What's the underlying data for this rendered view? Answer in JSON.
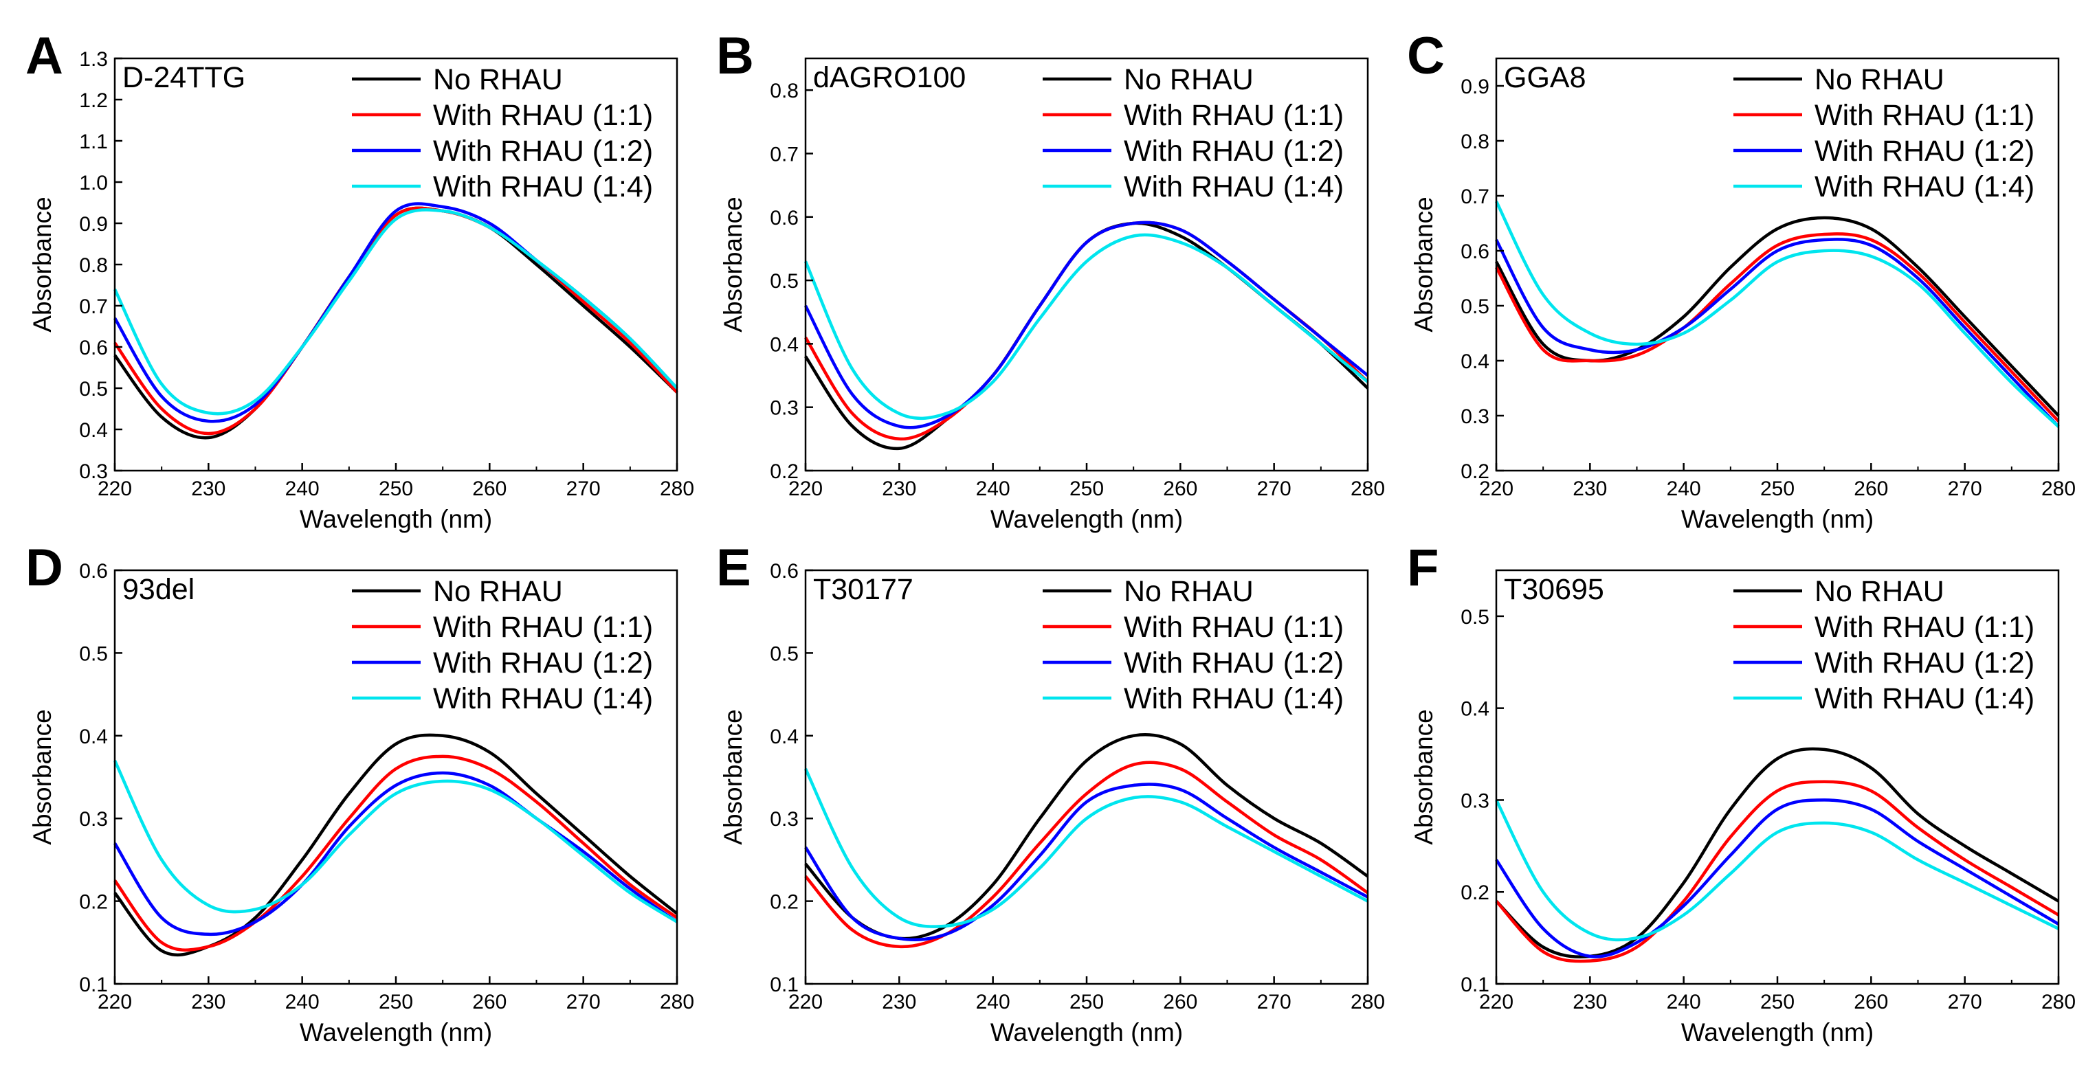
{
  "figure": {
    "description_free": true
  },
  "chart_data": [
    {
      "type": "line",
      "panel": "A",
      "sample": "D-24TTG",
      "xlabel": "Wavelength (nm)",
      "ylabel": "Absorbance",
      "xlim": [
        220,
        280
      ],
      "ylim": [
        0.3,
        1.3
      ],
      "xticks": [
        220,
        230,
        240,
        250,
        260,
        270,
        280
      ],
      "yticks": [
        0.3,
        0.4,
        0.5,
        0.6,
        0.7,
        0.8,
        0.9,
        1.0,
        1.1,
        1.2,
        1.3
      ],
      "x": [
        220,
        225,
        230,
        235,
        240,
        245,
        250,
        255,
        260,
        265,
        270,
        275,
        280
      ],
      "legend": [
        "No RHAU",
        "With RHAU (1:1)",
        "With RHAU (1:2)",
        "With RHAU (1:4)"
      ],
      "series": [
        {
          "name": "No RHAU",
          "color": "#000000",
          "values": [
            0.58,
            0.43,
            0.38,
            0.45,
            0.6,
            0.77,
            0.92,
            0.93,
            0.89,
            0.8,
            0.7,
            0.6,
            0.49
          ]
        },
        {
          "name": "With RHAU (1:1)",
          "color": "#ff0000",
          "values": [
            0.61,
            0.45,
            0.39,
            0.45,
            0.6,
            0.77,
            0.92,
            0.93,
            0.89,
            0.81,
            0.71,
            0.61,
            0.49
          ]
        },
        {
          "name": "With RHAU (1:2)",
          "color": "#0000ff",
          "values": [
            0.67,
            0.48,
            0.42,
            0.46,
            0.6,
            0.77,
            0.93,
            0.94,
            0.9,
            0.81,
            0.72,
            0.62,
            0.5
          ]
        },
        {
          "name": "With RHAU (1:4)",
          "color": "#00e5ee",
          "values": [
            0.74,
            0.51,
            0.44,
            0.47,
            0.6,
            0.76,
            0.91,
            0.93,
            0.89,
            0.81,
            0.72,
            0.62,
            0.5
          ]
        }
      ]
    },
    {
      "type": "line",
      "panel": "B",
      "sample": "dAGRO100",
      "xlabel": "Wavelength (nm)",
      "ylabel": "Absorbance",
      "xlim": [
        220,
        280
      ],
      "ylim": [
        0.2,
        0.85
      ],
      "xticks": [
        220,
        230,
        240,
        250,
        260,
        270,
        280
      ],
      "yticks": [
        0.2,
        0.3,
        0.4,
        0.5,
        0.6,
        0.7,
        0.8
      ],
      "x": [
        220,
        225,
        230,
        235,
        240,
        245,
        250,
        255,
        260,
        265,
        270,
        275,
        280
      ],
      "legend": [
        "No RHAU",
        "With RHAU (1:1)",
        "With RHAU (1:2)",
        "With RHAU (1:4)"
      ],
      "series": [
        {
          "name": "No RHAU",
          "color": "#000000",
          "values": [
            0.38,
            0.27,
            0.235,
            0.28,
            0.35,
            0.46,
            0.56,
            0.59,
            0.57,
            0.52,
            0.46,
            0.4,
            0.33
          ]
        },
        {
          "name": "With RHAU (1:1)",
          "color": "#ff0000",
          "values": [
            0.41,
            0.29,
            0.25,
            0.28,
            0.35,
            0.46,
            0.56,
            0.59,
            0.58,
            0.53,
            0.47,
            0.41,
            0.34
          ]
        },
        {
          "name": "With RHAU (1:2)",
          "color": "#0000ff",
          "values": [
            0.46,
            0.32,
            0.27,
            0.285,
            0.35,
            0.46,
            0.56,
            0.59,
            0.58,
            0.53,
            0.47,
            0.41,
            0.35
          ]
        },
        {
          "name": "With RHAU (1:4)",
          "color": "#00e5ee",
          "values": [
            0.53,
            0.36,
            0.29,
            0.29,
            0.34,
            0.44,
            0.53,
            0.57,
            0.56,
            0.52,
            0.46,
            0.4,
            0.34
          ]
        }
      ]
    },
    {
      "type": "line",
      "panel": "C",
      "sample": "GGA8",
      "xlabel": "Wavelength (nm)",
      "ylabel": "Absorbance",
      "xlim": [
        220,
        280
      ],
      "ylim": [
        0.2,
        0.95
      ],
      "xticks": [
        220,
        230,
        240,
        250,
        260,
        270,
        280
      ],
      "yticks": [
        0.2,
        0.3,
        0.4,
        0.5,
        0.6,
        0.7,
        0.8,
        0.9
      ],
      "x": [
        220,
        225,
        230,
        235,
        240,
        245,
        250,
        255,
        260,
        265,
        270,
        275,
        280
      ],
      "legend": [
        "No RHAU",
        "With RHAU (1:1)",
        "With RHAU (1:2)",
        "With RHAU (1:4)"
      ],
      "series": [
        {
          "name": "No RHAU",
          "color": "#000000",
          "values": [
            0.58,
            0.43,
            0.4,
            0.42,
            0.48,
            0.57,
            0.64,
            0.66,
            0.64,
            0.57,
            0.48,
            0.39,
            0.3
          ]
        },
        {
          "name": "With RHAU (1:1)",
          "color": "#ff0000",
          "values": [
            0.57,
            0.42,
            0.4,
            0.41,
            0.46,
            0.54,
            0.61,
            0.63,
            0.62,
            0.56,
            0.47,
            0.38,
            0.29
          ]
        },
        {
          "name": "With RHAU (1:2)",
          "color": "#0000ff",
          "values": [
            0.62,
            0.46,
            0.42,
            0.42,
            0.46,
            0.53,
            0.6,
            0.62,
            0.61,
            0.55,
            0.46,
            0.37,
            0.28
          ]
        },
        {
          "name": "With RHAU (1:4)",
          "color": "#00e5ee",
          "values": [
            0.69,
            0.52,
            0.45,
            0.43,
            0.45,
            0.51,
            0.58,
            0.6,
            0.59,
            0.54,
            0.45,
            0.36,
            0.28
          ]
        }
      ]
    },
    {
      "type": "line",
      "panel": "D",
      "sample": "93del",
      "xlabel": "Wavelength (nm)",
      "ylabel": "Absorbance",
      "xlim": [
        220,
        280
      ],
      "ylim": [
        0.1,
        0.6
      ],
      "xticks": [
        220,
        230,
        240,
        250,
        260,
        270,
        280
      ],
      "yticks": [
        0.1,
        0.2,
        0.3,
        0.4,
        0.5,
        0.6
      ],
      "x": [
        220,
        225,
        230,
        235,
        240,
        245,
        250,
        255,
        260,
        265,
        270,
        275,
        280
      ],
      "legend": [
        "No RHAU",
        "With RHAU (1:1)",
        "With RHAU (1:2)",
        "With RHAU (1:4)"
      ],
      "series": [
        {
          "name": "No RHAU",
          "color": "#000000",
          "values": [
            0.21,
            0.14,
            0.145,
            0.18,
            0.25,
            0.33,
            0.39,
            0.4,
            0.38,
            0.33,
            0.28,
            0.23,
            0.185
          ]
        },
        {
          "name": "With RHAU (1:1)",
          "color": "#ff0000",
          "values": [
            0.225,
            0.15,
            0.145,
            0.175,
            0.23,
            0.3,
            0.36,
            0.375,
            0.36,
            0.32,
            0.27,
            0.22,
            0.18
          ]
        },
        {
          "name": "With RHAU (1:2)",
          "color": "#0000ff",
          "values": [
            0.27,
            0.18,
            0.16,
            0.175,
            0.22,
            0.29,
            0.34,
            0.355,
            0.34,
            0.3,
            0.26,
            0.215,
            0.175
          ]
        },
        {
          "name": "With RHAU (1:4)",
          "color": "#00e5ee",
          "values": [
            0.37,
            0.25,
            0.195,
            0.19,
            0.22,
            0.28,
            0.33,
            0.345,
            0.335,
            0.3,
            0.255,
            0.21,
            0.175
          ]
        }
      ]
    },
    {
      "type": "line",
      "panel": "E",
      "sample": "T30177",
      "xlabel": "Wavelength (nm)",
      "ylabel": "Absorbance",
      "xlim": [
        220,
        280
      ],
      "ylim": [
        0.1,
        0.6
      ],
      "xticks": [
        220,
        230,
        240,
        250,
        260,
        270,
        280
      ],
      "yticks": [
        0.1,
        0.2,
        0.3,
        0.4,
        0.5,
        0.6
      ],
      "x": [
        220,
        225,
        230,
        235,
        240,
        245,
        250,
        255,
        260,
        265,
        270,
        275,
        280
      ],
      "legend": [
        "No RHAU",
        "With RHAU (1:1)",
        "With RHAU (1:2)",
        "With RHAU (1:4)"
      ],
      "series": [
        {
          "name": "No RHAU",
          "color": "#000000",
          "values": [
            0.245,
            0.18,
            0.155,
            0.17,
            0.22,
            0.3,
            0.37,
            0.4,
            0.39,
            0.34,
            0.3,
            0.27,
            0.23
          ]
        },
        {
          "name": "With RHAU (1:1)",
          "color": "#ff0000",
          "values": [
            0.23,
            0.165,
            0.145,
            0.16,
            0.205,
            0.27,
            0.33,
            0.365,
            0.36,
            0.32,
            0.28,
            0.25,
            0.21
          ]
        },
        {
          "name": "With RHAU (1:2)",
          "color": "#0000ff",
          "values": [
            0.265,
            0.18,
            0.155,
            0.16,
            0.195,
            0.255,
            0.32,
            0.34,
            0.335,
            0.3,
            0.265,
            0.235,
            0.205
          ]
        },
        {
          "name": "With RHAU (1:4)",
          "color": "#00e5ee",
          "values": [
            0.36,
            0.24,
            0.18,
            0.17,
            0.19,
            0.24,
            0.3,
            0.325,
            0.32,
            0.29,
            0.26,
            0.23,
            0.2
          ]
        }
      ]
    },
    {
      "type": "line",
      "panel": "F",
      "sample": "T30695",
      "xlabel": "Wavelength (nm)",
      "ylabel": "Absorbance",
      "xlim": [
        220,
        280
      ],
      "ylim": [
        0.1,
        0.55
      ],
      "xticks": [
        220,
        230,
        240,
        250,
        260,
        270,
        280
      ],
      "yticks": [
        0.1,
        0.2,
        0.3,
        0.4,
        0.5
      ],
      "x": [
        220,
        225,
        230,
        235,
        240,
        245,
        250,
        255,
        260,
        265,
        270,
        275,
        280
      ],
      "legend": [
        "No RHAU",
        "With RHAU (1:1)",
        "With RHAU (1:2)",
        "With RHAU (1:4)"
      ],
      "series": [
        {
          "name": "No RHAU",
          "color": "#000000",
          "values": [
            0.19,
            0.14,
            0.13,
            0.15,
            0.21,
            0.29,
            0.345,
            0.355,
            0.335,
            0.285,
            0.25,
            0.22,
            0.19
          ]
        },
        {
          "name": "With RHAU (1:1)",
          "color": "#ff0000",
          "values": [
            0.19,
            0.135,
            0.125,
            0.14,
            0.19,
            0.26,
            0.31,
            0.32,
            0.31,
            0.27,
            0.235,
            0.205,
            0.175
          ]
        },
        {
          "name": "With RHAU (1:2)",
          "color": "#0000ff",
          "values": [
            0.235,
            0.16,
            0.13,
            0.145,
            0.185,
            0.24,
            0.29,
            0.3,
            0.29,
            0.255,
            0.225,
            0.195,
            0.165
          ]
        },
        {
          "name": "With RHAU (1:4)",
          "color": "#00e5ee",
          "values": [
            0.3,
            0.2,
            0.155,
            0.15,
            0.175,
            0.22,
            0.265,
            0.275,
            0.265,
            0.235,
            0.21,
            0.185,
            0.16
          ]
        }
      ]
    }
  ]
}
